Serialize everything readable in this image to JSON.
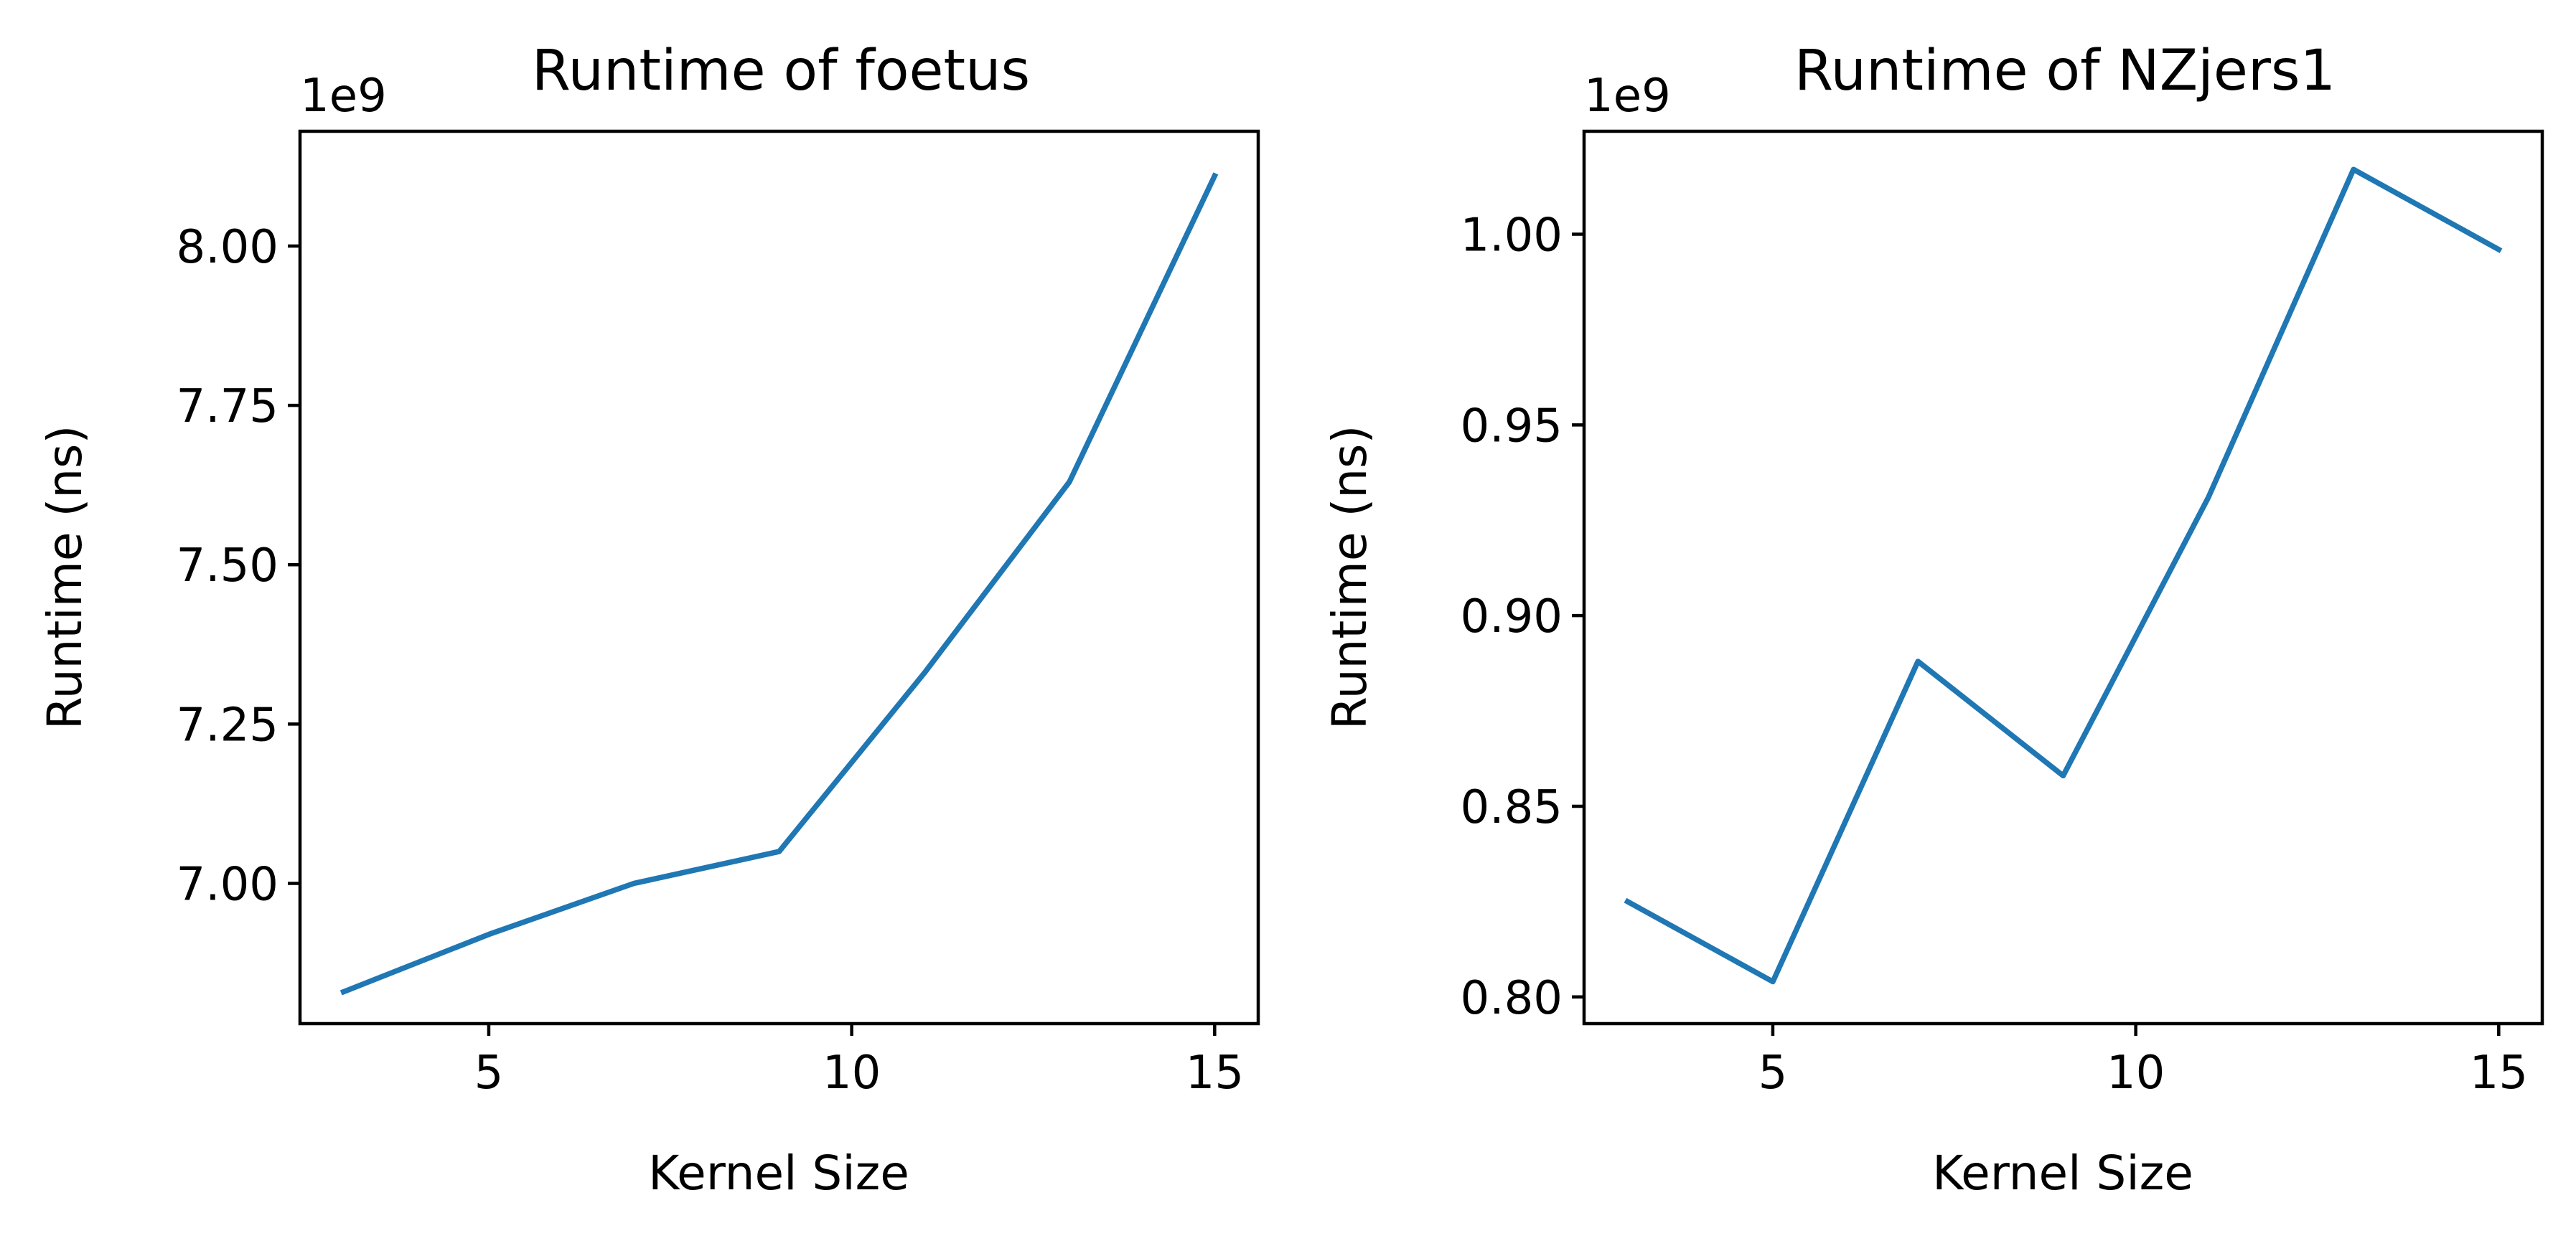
{
  "chart_data": [
    {
      "type": "line",
      "title": "Runtime of foetus",
      "xlabel": "Kernel Size",
      "ylabel": "Runtime (ns)",
      "y_offset_label": "1e9",
      "x": [
        3,
        5,
        7,
        9,
        11,
        13,
        15
      ],
      "series": [
        {
          "values": [
            6.83,
            6.92,
            7.0,
            7.05,
            7.33,
            7.63,
            8.11
          ]
        }
      ],
      "xlim": [
        2.4,
        15.6
      ],
      "ylim": [
        6.78,
        8.18
      ],
      "xticks": [
        5,
        10,
        15
      ],
      "xtick_labels": [
        "5",
        "10",
        "15"
      ],
      "yticks": [
        7.0,
        7.25,
        7.5,
        7.75,
        8.0
      ],
      "ytick_labels": [
        "7.00",
        "7.25",
        "7.50",
        "7.75",
        "8.00"
      ],
      "line_color": "#1f77b4",
      "grid": false,
      "legend": "none"
    },
    {
      "type": "line",
      "title": "Runtime of NZjers1",
      "xlabel": "Kernel Size",
      "ylabel": "Runtime (ns)",
      "y_offset_label": "1e9",
      "x": [
        3,
        5,
        7,
        9,
        11,
        13,
        15
      ],
      "series": [
        {
          "values": [
            0.825,
            0.804,
            0.888,
            0.858,
            0.931,
            1.017,
            0.996
          ]
        }
      ],
      "xlim": [
        2.4,
        15.6
      ],
      "ylim": [
        0.793,
        1.027
      ],
      "xticks": [
        5,
        10,
        15
      ],
      "xtick_labels": [
        "5",
        "10",
        "15"
      ],
      "yticks": [
        0.8,
        0.85,
        0.9,
        0.95,
        1.0
      ],
      "ytick_labels": [
        "0.80",
        "0.85",
        "0.90",
        "0.95",
        "1.00"
      ],
      "line_color": "#1f77b4",
      "grid": false,
      "legend": "none"
    }
  ]
}
